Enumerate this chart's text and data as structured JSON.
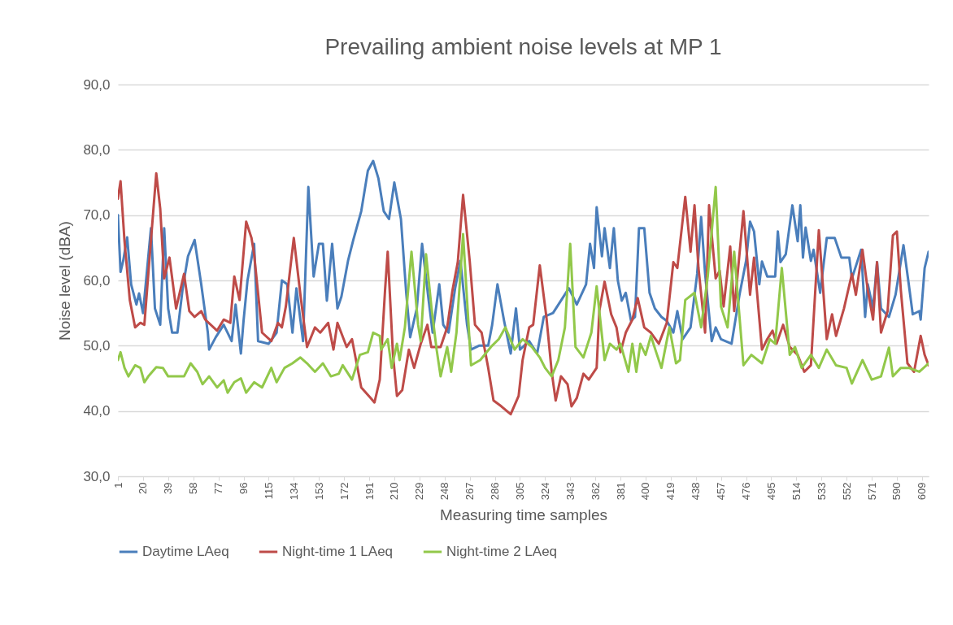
{
  "chart_data": {
    "type": "line",
    "title": "Prevailing ambient noise levels at MP 1",
    "xlabel": "Measuring time samples",
    "ylabel": "Noise level (dBA)",
    "xlim": [
      1,
      614
    ],
    "xticks": [
      1,
      20,
      39,
      58,
      77,
      96,
      115,
      134,
      153,
      172,
      191,
      210,
      229,
      248,
      267,
      286,
      305,
      324,
      343,
      362,
      381,
      400,
      419,
      438,
      457,
      476,
      495,
      514,
      533,
      552,
      571,
      590,
      609
    ],
    "ylim": [
      30,
      90
    ],
    "yticks": [
      {
        "value": 30,
        "label": "30,0"
      },
      {
        "value": 40,
        "label": "40,0"
      },
      {
        "value": 50,
        "label": "50,0"
      },
      {
        "value": 60,
        "label": "60,0"
      },
      {
        "value": 70,
        "label": "70,0"
      },
      {
        "value": 80,
        "label": "80,0"
      },
      {
        "value": 90,
        "label": "90,0"
      }
    ],
    "grid": "y",
    "legend": "bottom",
    "series": [
      {
        "name": "Daytime LAeq",
        "color": "#4a7ebb",
        "x": [
          1,
          3,
          5,
          8,
          11,
          15,
          17,
          20,
          26,
          29,
          33,
          36,
          39,
          42,
          46,
          50,
          54,
          59,
          64,
          69,
          70,
          75,
          81,
          87,
          90,
          94,
          96,
          99,
          104,
          107,
          115,
          121,
          125,
          129,
          133,
          136,
          141,
          145,
          149,
          153,
          156,
          159,
          163,
          167,
          170,
          175,
          179,
          185,
          190,
          194,
          198,
          202,
          206,
          210,
          215,
          219,
          222,
          227,
          231,
          236,
          239,
          244,
          247,
          251,
          256,
          260,
          265,
          268,
          274,
          281,
          284,
          288,
          293,
          298,
          302,
          305,
          312,
          318,
          323,
          330,
          336,
          342,
          348,
          355,
          358,
          361,
          363,
          367,
          369,
          373,
          376,
          379,
          382,
          385,
          389,
          392,
          395,
          399,
          403,
          407,
          412,
          416,
          421,
          424,
          428,
          434,
          439,
          442,
          445,
          450,
          453,
          457,
          465,
          471,
          476,
          479,
          482,
          486,
          488,
          492,
          498,
          500,
          502,
          506,
          511,
          515,
          517,
          519,
          521,
          525,
          527,
          532,
          537,
          543,
          548,
          554,
          556,
          563,
          566,
          568,
          572,
          575,
          578,
          584,
          589,
          595,
          599,
          602,
          607,
          608,
          611,
          614
        ],
        "values": [
          70.0,
          61.3,
          63,
          66.6,
          59.4,
          56.3,
          58,
          55,
          68,
          55.7,
          53.2,
          68,
          55.7,
          52,
          52,
          58.8,
          63.7,
          66.2,
          59.4,
          52,
          49.4,
          51.3,
          53.2,
          50.7,
          56.3,
          48.8,
          53.8,
          60,
          65.6,
          50.7,
          50.3,
          52,
          60,
          59.4,
          52,
          58.8,
          50.7,
          74.3,
          60.6,
          65.6,
          65.6,
          56.9,
          65.6,
          55.7,
          57.5,
          63,
          66.2,
          70.6,
          76.8,
          78.3,
          75.6,
          70.6,
          69.4,
          75,
          69.4,
          58.1,
          51.3,
          55.7,
          65.6,
          56.9,
          52,
          59.4,
          53.2,
          52,
          58.8,
          63,
          53.2,
          49.4,
          50,
          50,
          53.2,
          59.4,
          53.8,
          48.8,
          55.7,
          49.4,
          50.7,
          48.8,
          54.4,
          55,
          56.9,
          58.8,
          56.3,
          59.4,
          65.6,
          61.9,
          71.2,
          63.7,
          68,
          61.9,
          68,
          60,
          56.9,
          58.1,
          53.8,
          54.4,
          68,
          68,
          58.1,
          55.7,
          54.4,
          53.8,
          52,
          55.3,
          51,
          52.8,
          61,
          69.7,
          61,
          50.7,
          52.8,
          51,
          50.3,
          57.8,
          63,
          69,
          67.5,
          59.4,
          62.9,
          60.6,
          60.6,
          67.5,
          62.8,
          64,
          71.5,
          66,
          71.5,
          63.5,
          68.1,
          63,
          64.7,
          58.1,
          66.5,
          66.5,
          63.5,
          63.5,
          60.3,
          64.7,
          54.4,
          59.4,
          55.7,
          62.8,
          55.7,
          54.4,
          57.8,
          65.4,
          59.4,
          54.8,
          55.3,
          54,
          61.9,
          64.4
        ]
      },
      {
        "name": "Night-time 1 LAeq",
        "color": "#be4b48",
        "x": [
          1,
          3,
          6,
          10,
          14,
          18,
          21,
          24,
          30,
          33,
          36,
          40,
          45,
          51,
          55,
          59,
          64,
          67,
          76,
          81,
          86,
          89,
          93,
          98,
          102,
          104,
          110,
          117,
          122,
          125,
          128,
          134,
          139,
          144,
          150,
          154,
          160,
          164,
          167,
          174,
          178,
          185,
          192,
          195,
          199,
          203,
          205,
          209,
          212,
          216,
          221,
          225,
          230,
          235,
          238,
          245,
          250,
          254,
          258,
          262,
          267,
          271,
          276,
          281,
          285,
          291,
          298,
          304,
          307,
          312,
          315,
          320,
          325,
          329,
          332,
          336,
          341,
          344,
          348,
          353,
          357,
          363,
          365,
          369,
          374,
          378,
          381,
          385,
          390,
          394,
          399,
          404,
          410,
          416,
          421,
          424,
          430,
          434,
          437,
          440,
          445,
          448,
          453,
          456,
          459,
          464,
          467,
          474,
          479,
          482,
          488,
          492,
          496,
          499,
          504,
          509,
          515,
          520,
          525,
          531,
          537,
          541,
          544,
          550,
          556,
          559,
          564,
          568,
          572,
          575,
          578,
          583,
          587,
          590,
          593,
          598,
          603,
          608,
          611,
          614
        ],
        "values": [
          72.5,
          75.2,
          66,
          57,
          52.8,
          53.5,
          53.2,
          61,
          76.4,
          71,
          60.3,
          63.5,
          55.7,
          61,
          55.3,
          54.4,
          55.3,
          54,
          52.3,
          54,
          53.5,
          60.6,
          57,
          69,
          66.5,
          64,
          52,
          50.7,
          53.5,
          52.8,
          56,
          66.5,
          57.8,
          49.8,
          52.8,
          52,
          53.5,
          49.4,
          53.5,
          49.8,
          51,
          43.6,
          42,
          41.3,
          44.8,
          58.5,
          64.4,
          48.6,
          42.3,
          43.2,
          49.4,
          46.6,
          50.3,
          53.2,
          49.8,
          49.8,
          52.8,
          58.5,
          62.8,
          73.1,
          63,
          53.2,
          52,
          46.6,
          41.6,
          40.7,
          39.5,
          42.3,
          47.8,
          52.8,
          53.2,
          62.3,
          54.4,
          46,
          41.6,
          45.3,
          44.1,
          40.7,
          42,
          45.7,
          44.8,
          46.6,
          55.3,
          59.8,
          54.8,
          52.8,
          49,
          52,
          54,
          57.3,
          52.8,
          52,
          50.3,
          53.5,
          62.8,
          61.9,
          72.8,
          64.4,
          71.5,
          61.9,
          52,
          71.5,
          60.3,
          61.5,
          56,
          65.2,
          55.3,
          70.6,
          57.8,
          63.5,
          49.4,
          51,
          52.3,
          50.3,
          53.2,
          49.8,
          48.6,
          46,
          47,
          67.7,
          51,
          54.8,
          51.5,
          55.7,
          61,
          57.8,
          64.7,
          58.5,
          54,
          62.8,
          52,
          55.3,
          66.9,
          67.5,
          58.5,
          47.3,
          46,
          51.5,
          48.6,
          47
        ]
      },
      {
        "name": "Night-time 2 LAeq",
        "color": "#92c84a",
        "x": [
          1,
          3,
          6,
          9,
          14,
          18,
          21,
          24,
          30,
          35,
          39,
          45,
          51,
          56,
          61,
          65,
          70,
          76,
          81,
          84,
          89,
          94,
          98,
          104,
          110,
          117,
          121,
          127,
          133,
          139,
          144,
          150,
          156,
          162,
          168,
          171,
          178,
          184,
          190,
          194,
          199,
          200,
          205,
          208,
          212,
          214,
          218,
          223,
          228,
          230,
          234,
          238,
          242,
          245,
          250,
          253,
          257,
          262,
          265,
          268,
          275,
          283,
          289,
          294,
          301,
          307,
          314,
          320,
          324,
          329,
          334,
          339,
          343,
          347,
          353,
          359,
          363,
          369,
          373,
          378,
          381,
          387,
          390,
          393,
          396,
          400,
          404,
          408,
          412,
          418,
          423,
          426,
          430,
          437,
          442,
          447,
          453,
          457,
          462,
          467,
          474,
          480,
          488,
          494,
          498,
          503,
          509,
          513,
          518,
          525,
          531,
          537,
          544,
          552,
          556,
          560,
          564,
          571,
          578,
          584,
          587,
          593,
          599,
          607,
          614
        ],
        "values": [
          47.8,
          49,
          46.6,
          45.3,
          47,
          46.6,
          44.4,
          45.3,
          46.7,
          46.6,
          45.3,
          45.3,
          45.3,
          47.3,
          46,
          44.1,
          45.3,
          43.6,
          44.7,
          42.8,
          44.4,
          45,
          42.8,
          44.4,
          43.6,
          46.6,
          44.4,
          46.6,
          47.3,
          48.2,
          47.3,
          46,
          47.3,
          45.3,
          45.7,
          47,
          44.8,
          48.6,
          49,
          52,
          51.5,
          49.4,
          51,
          46.6,
          50.3,
          47.8,
          52.8,
          64.4,
          53.2,
          50.7,
          64,
          56,
          49.4,
          45.3,
          49.8,
          46,
          52,
          67.1,
          57,
          47,
          47.8,
          49.8,
          51,
          52.8,
          49.4,
          51,
          49.8,
          48.2,
          46.6,
          45.3,
          47.8,
          52.8,
          65.6,
          49.8,
          48.2,
          52,
          59.1,
          47.8,
          50.3,
          49.4,
          50.3,
          46,
          50.3,
          46,
          50.3,
          48.6,
          51.5,
          49,
          46.6,
          52.8,
          47.3,
          47.8,
          57,
          58.1,
          52.8,
          60.6,
          74.3,
          56,
          52.8,
          64.4,
          47,
          48.6,
          47.3,
          51,
          50.3,
          61.9,
          48.6,
          49.8,
          46.6,
          48.6,
          46.6,
          49.4,
          47,
          46.6,
          44.2,
          46,
          47.8,
          44.8,
          45.3,
          49.7,
          45.3,
          46.6,
          46.6,
          46,
          47.3
        ]
      }
    ]
  }
}
